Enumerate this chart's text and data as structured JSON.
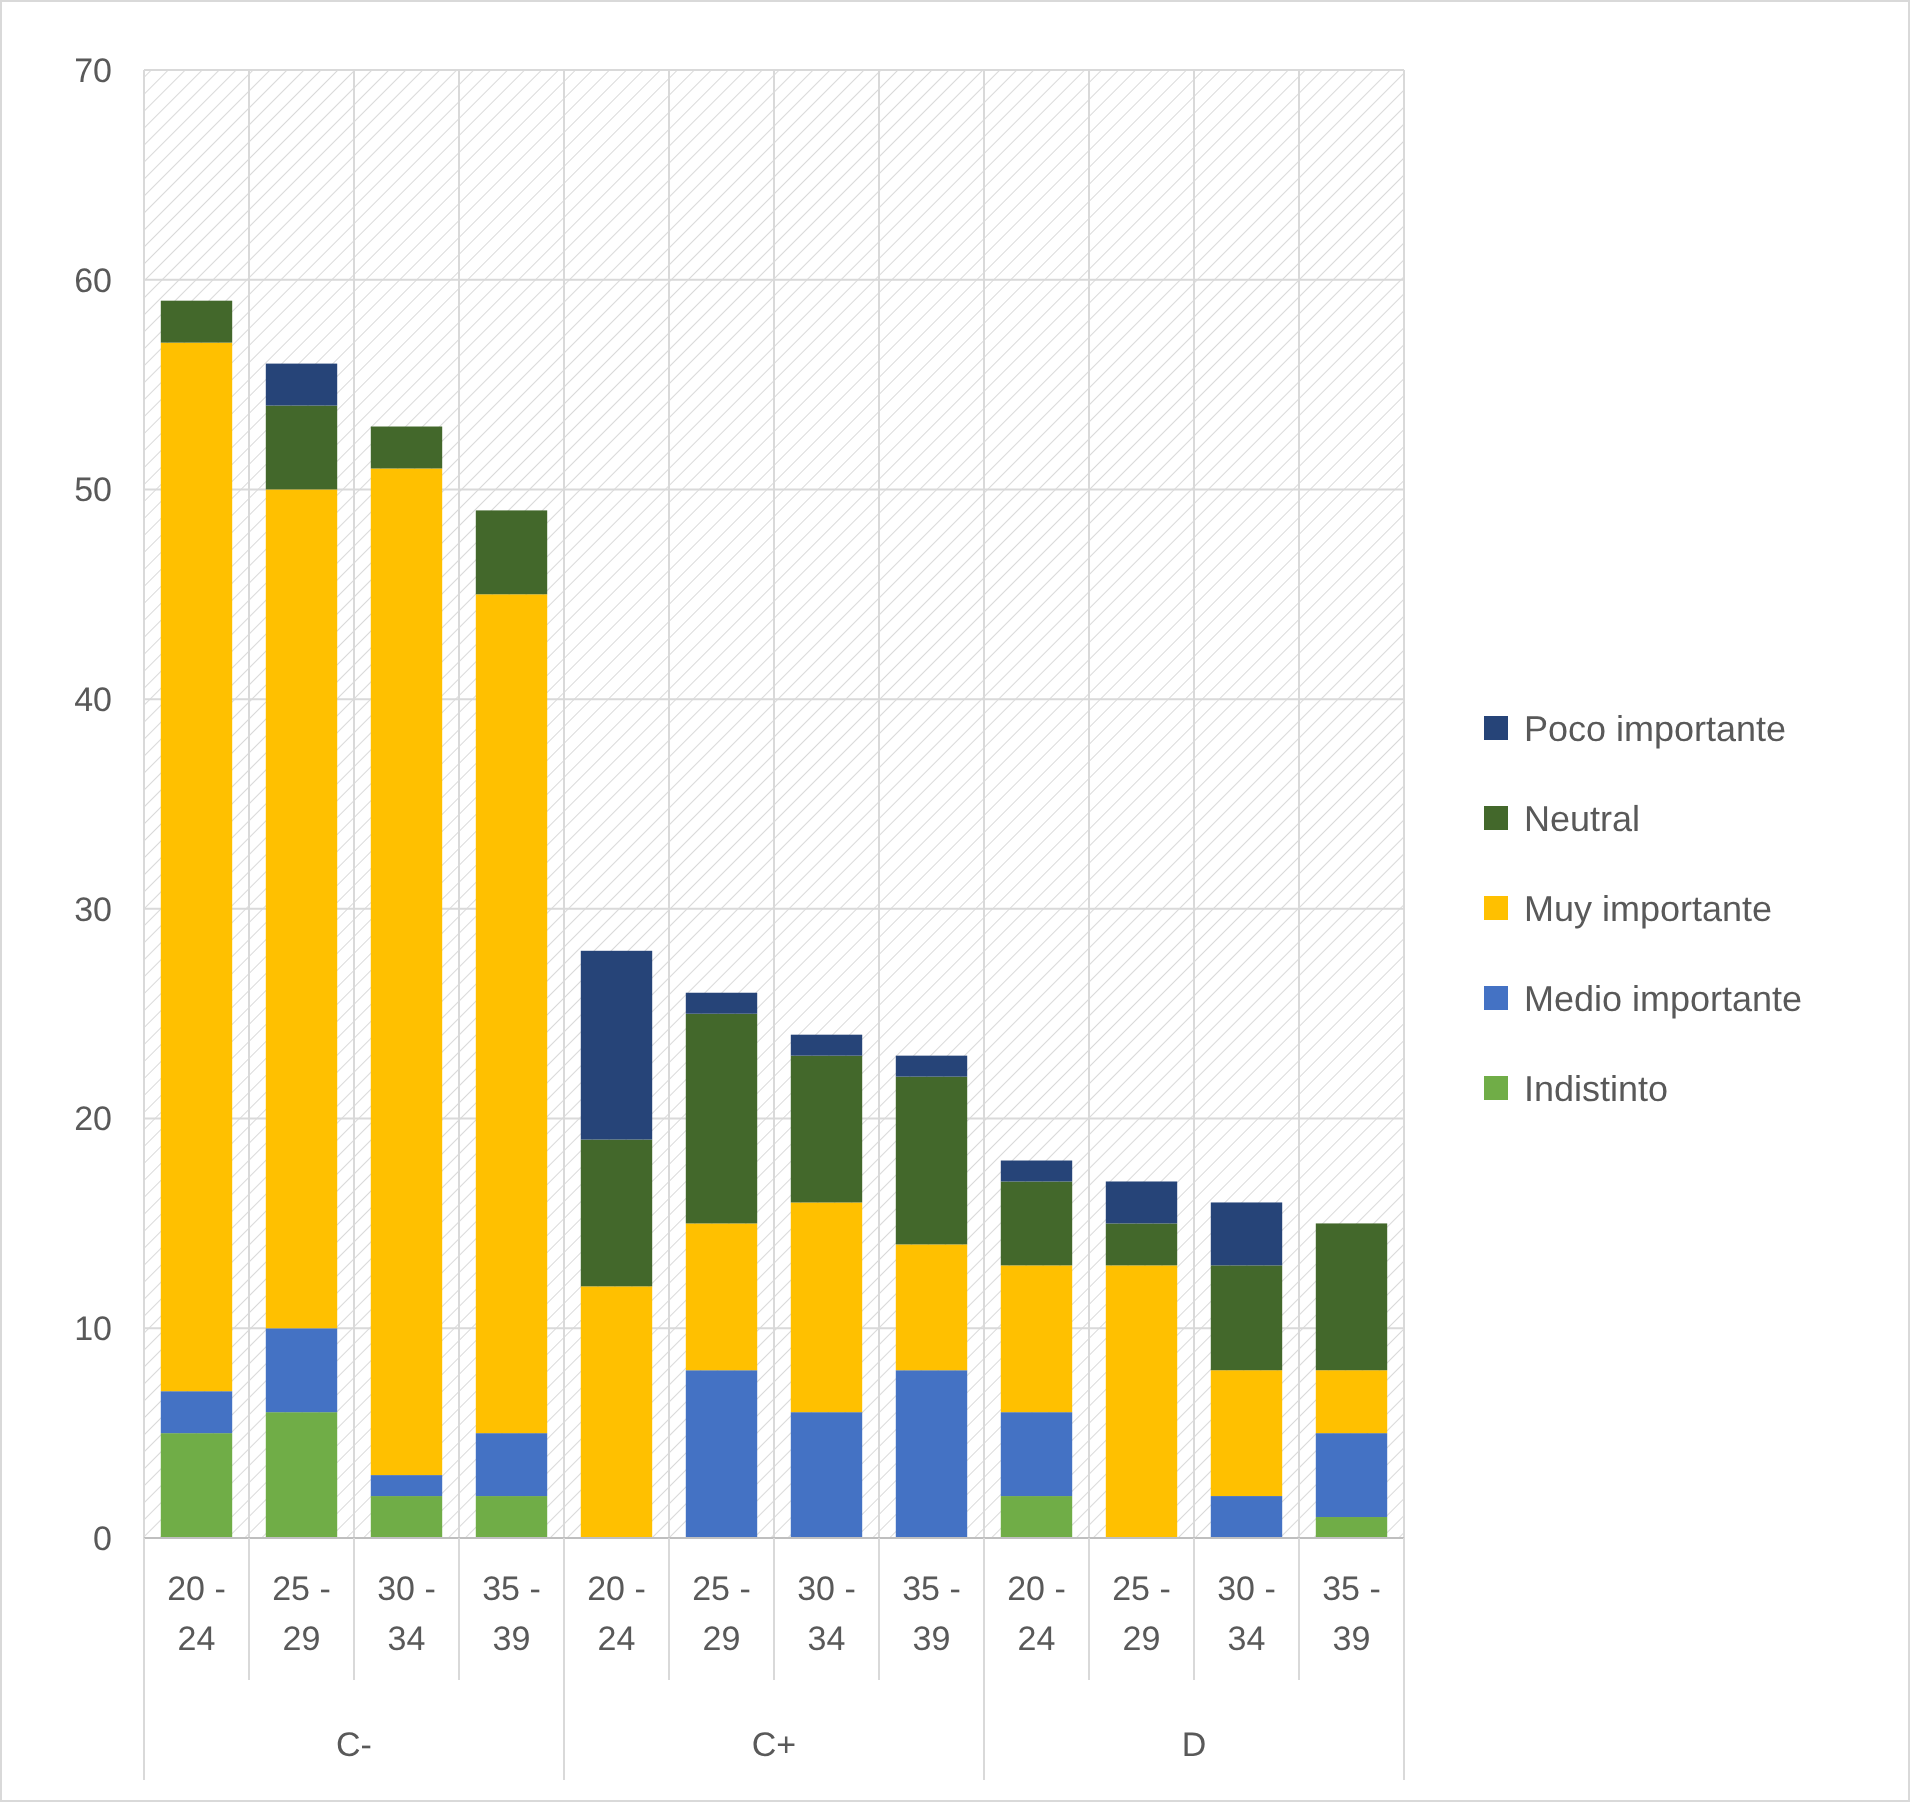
{
  "chart_data": {
    "type": "bar",
    "stacked": true,
    "categories": [
      "20 - 24",
      "25 - 29",
      "30 - 34",
      "35 - 39",
      "20 - 24",
      "25 - 29",
      "30 - 34",
      "35 - 39",
      "20 - 24",
      "25 - 29",
      "30 - 34",
      "35 - 39"
    ],
    "annotations": [
      "C-",
      "C+",
      "D"
    ],
    "series": [
      {
        "name": "Indistinto",
        "color": "#70ad47",
        "values": [
          5,
          6,
          2,
          2,
          0,
          0,
          0,
          0,
          2,
          0,
          0,
          1
        ]
      },
      {
        "name": "Medio importante",
        "color": "#4472c4",
        "values": [
          2,
          4,
          1,
          3,
          0,
          8,
          6,
          8,
          4,
          0,
          2,
          4
        ]
      },
      {
        "name": "Muy importante",
        "color": "#ffc000",
        "values": [
          50,
          40,
          48,
          40,
          12,
          7,
          10,
          6,
          7,
          13,
          6,
          3
        ]
      },
      {
        "name": "Neutral",
        "color": "#43682b",
        "values": [
          2,
          4,
          2,
          4,
          7,
          10,
          7,
          8,
          4,
          2,
          5,
          7
        ]
      },
      {
        "name": "Poco importante",
        "color": "#264478",
        "values": [
          0,
          2,
          0,
          0,
          9,
          1,
          1,
          1,
          1,
          2,
          3,
          0
        ]
      }
    ],
    "ylim": [
      0,
      70
    ],
    "yticks": [
      0,
      10,
      20,
      30,
      40,
      50,
      60,
      70
    ],
    "grid": true,
    "legend": "right"
  }
}
